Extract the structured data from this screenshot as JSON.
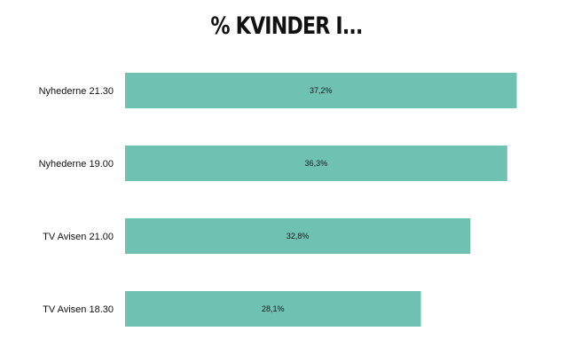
{
  "chart_data": {
    "type": "bar",
    "orientation": "horizontal",
    "title": "% KVINDER I...",
    "categories": [
      "Nyhederne 21.30",
      "Nyhederne 19.00",
      "TV Avisen 21.00",
      "TV Avisen 18.30"
    ],
    "values": [
      37.2,
      36.3,
      32.8,
      28.1
    ],
    "value_labels": [
      "37,2%",
      "36,3%",
      "32,8%",
      "28,1%"
    ],
    "xlabel": "",
    "ylabel": "",
    "xlim": [
      0,
      40
    ],
    "grid": false,
    "legend": "none",
    "colors": {
      "bar": "#6fc1b2"
    }
  }
}
